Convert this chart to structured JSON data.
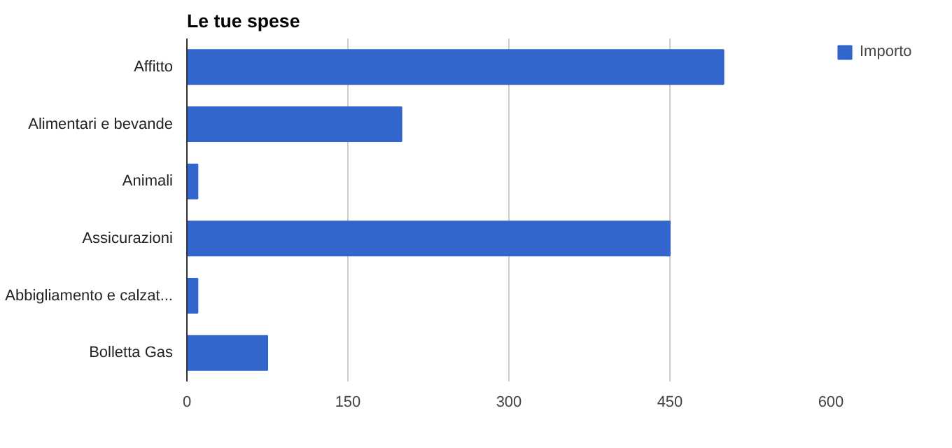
{
  "chart_data": {
    "type": "bar",
    "orientation": "horizontal",
    "title": "Le tue spese",
    "categories": [
      "Affitto",
      "Alimentari e bevande",
      "Animali",
      "Assicurazioni",
      "Abbigliamento e calzat...",
      "Bolletta Gas"
    ],
    "series": [
      {
        "name": "Importo",
        "color": "#3366cc",
        "values": [
          500,
          200,
          10,
          450,
          10,
          75
        ]
      }
    ],
    "xlim": [
      0,
      600
    ],
    "xticks": [
      0,
      150,
      300,
      450,
      600
    ],
    "grid": "x",
    "legend": "top right"
  }
}
